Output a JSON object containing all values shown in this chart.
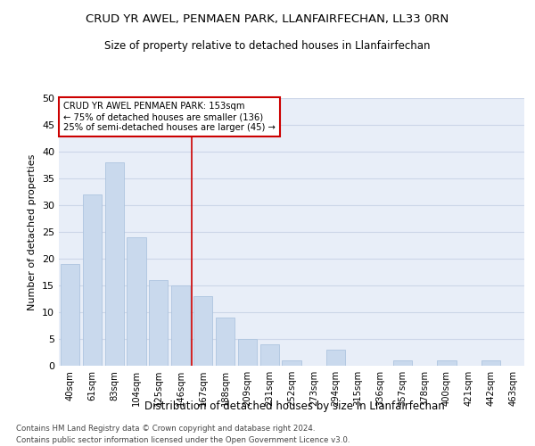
{
  "title": "CRUD YR AWEL, PENMAEN PARK, LLANFAIRFECHAN, LL33 0RN",
  "subtitle": "Size of property relative to detached houses in Llanfairfechan",
  "xlabel": "Distribution of detached houses by size in Llanfairfechan",
  "ylabel": "Number of detached properties",
  "footer_line1": "Contains HM Land Registry data © Crown copyright and database right 2024.",
  "footer_line2": "Contains public sector information licensed under the Open Government Licence v3.0.",
  "categories": [
    "40sqm",
    "61sqm",
    "83sqm",
    "104sqm",
    "125sqm",
    "146sqm",
    "167sqm",
    "188sqm",
    "209sqm",
    "231sqm",
    "252sqm",
    "273sqm",
    "294sqm",
    "315sqm",
    "336sqm",
    "357sqm",
    "378sqm",
    "400sqm",
    "421sqm",
    "442sqm",
    "463sqm"
  ],
  "values": [
    19,
    32,
    38,
    24,
    16,
    15,
    13,
    9,
    5,
    4,
    1,
    0,
    3,
    0,
    0,
    1,
    0,
    1,
    0,
    1,
    0
  ],
  "bar_color": "#c9d9ed",
  "bar_edge_color": "#adc4df",
  "grid_color": "#ccd6e8",
  "background_color": "#e8eef8",
  "annotation_text": "CRUD YR AWEL PENMAEN PARK: 153sqm\n← 75% of detached houses are smaller (136)\n25% of semi-detached houses are larger (45) →",
  "vline_x": 5.5,
  "vline_color": "#cc0000",
  "annotation_box_color": "#ffffff",
  "annotation_box_edge": "#cc0000",
  "ylim": [
    0,
    50
  ],
  "yticks": [
    0,
    5,
    10,
    15,
    20,
    25,
    30,
    35,
    40,
    45,
    50
  ]
}
